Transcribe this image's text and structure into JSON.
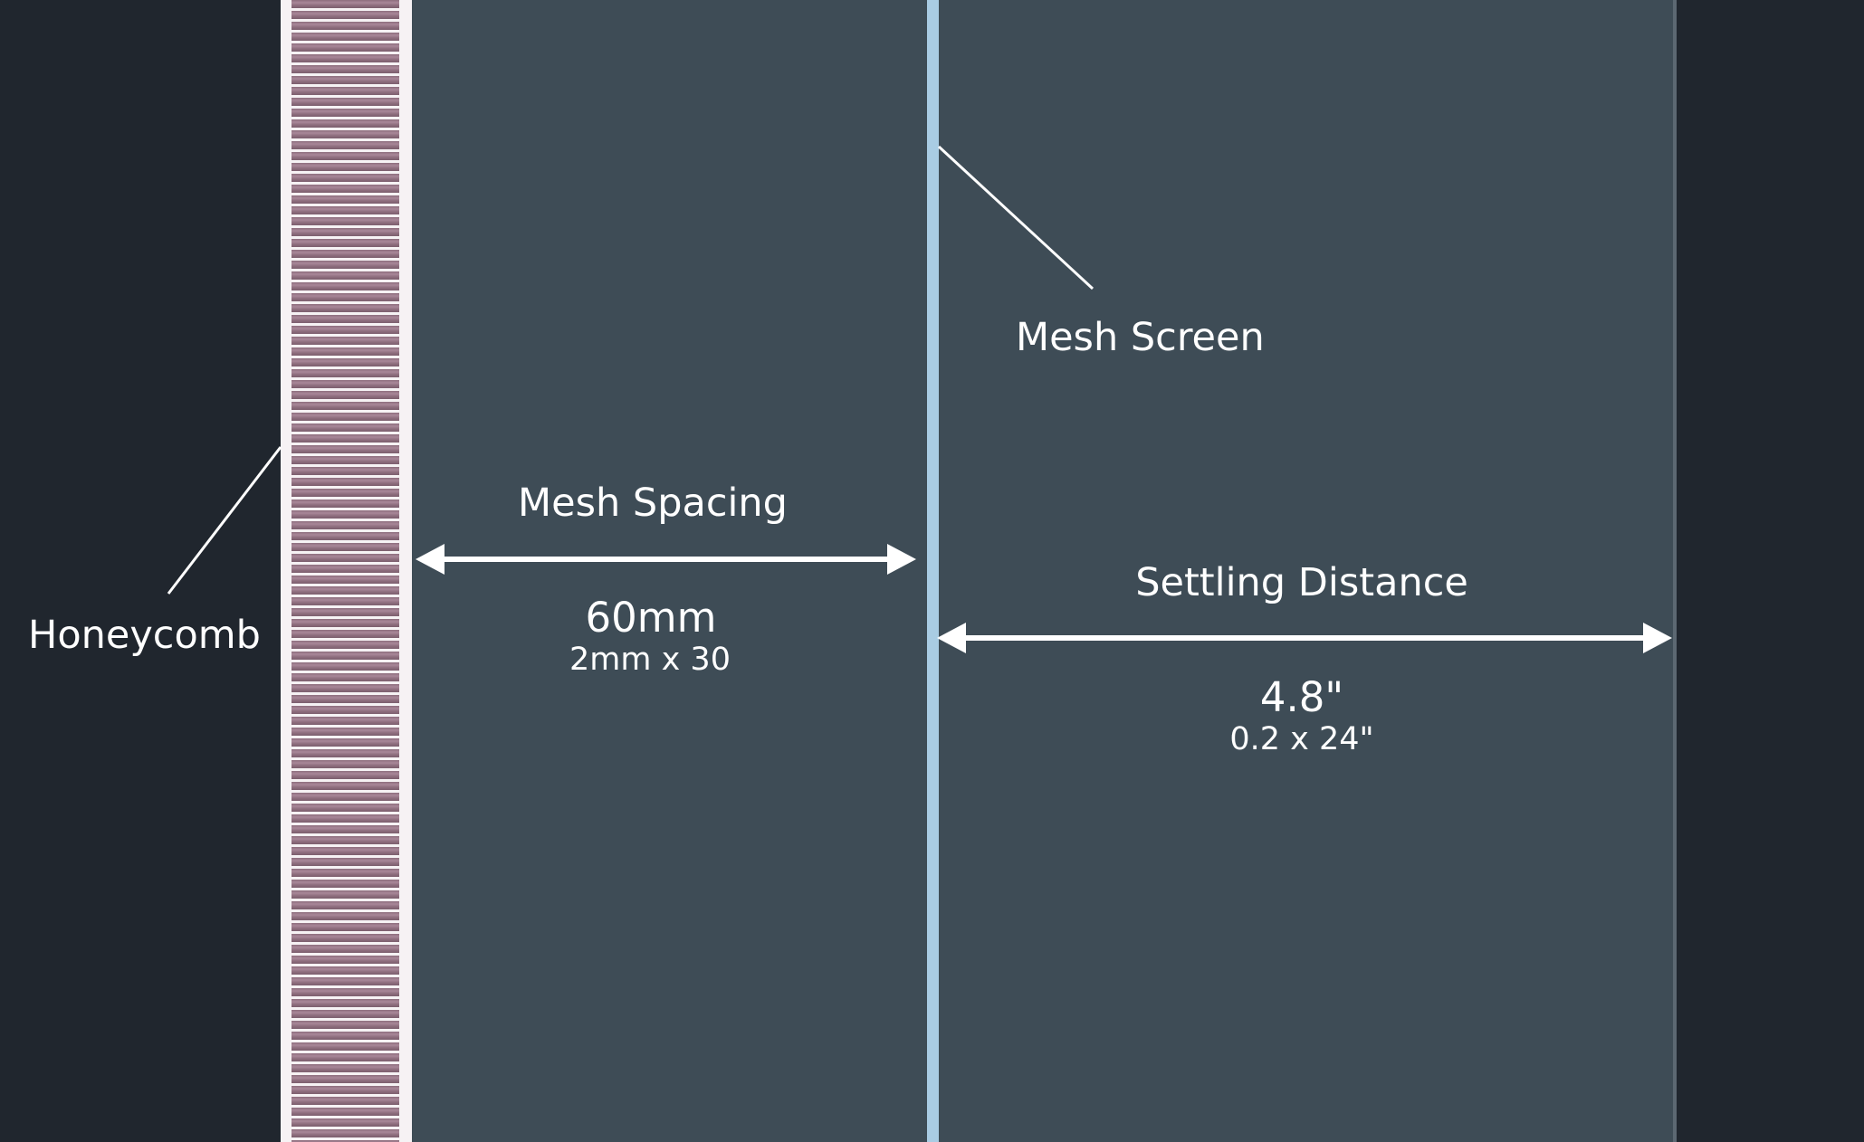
{
  "labels": {
    "honeycomb": "Honeycomb",
    "mesh_screen": "Mesh Screen",
    "mesh_spacing": "Mesh Spacing",
    "mesh_spacing_value": "60mm",
    "mesh_spacing_formula": "2mm x 30",
    "settling_distance": "Settling Distance",
    "settling_distance_value": "4.8\"",
    "settling_distance_formula": "0.2 x 24\""
  },
  "colors": {
    "background": "#20262e",
    "panel": "#3e4c56",
    "honeycomb_cells": "#8e6e7e",
    "honeycomb_frame": "#f6f2f4",
    "mesh_screen": "#a9cce3",
    "annotation": "#ffffff"
  }
}
